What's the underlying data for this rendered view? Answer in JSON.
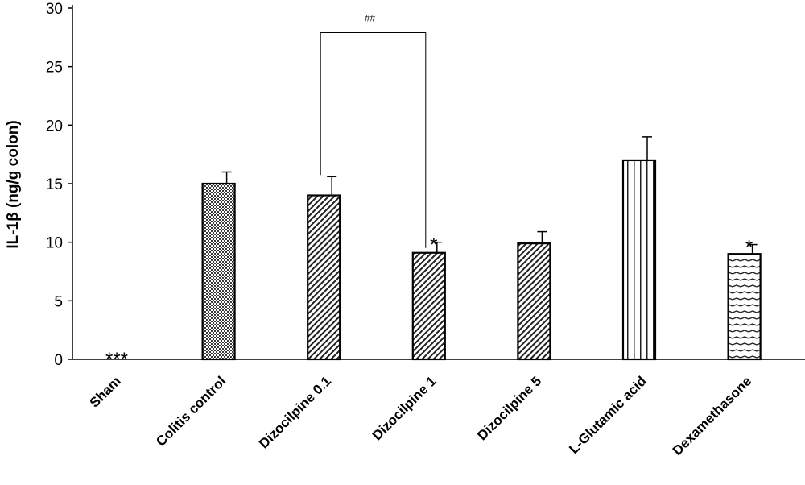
{
  "chart_data": {
    "type": "bar",
    "title": "",
    "xlabel": "",
    "ylabel": "IL-1β (ng/g colon)",
    "ylim": [
      0,
      30
    ],
    "yticks": [
      "0",
      "5",
      "10",
      "15",
      "20",
      "25",
      "30"
    ],
    "grid": false,
    "categories": [
      "Sham",
      "Colitis control",
      "Dizocilpine 0.1",
      "Dizocilpine 1",
      "Dizocilpine 5",
      "L-Glutamic acid",
      "Dexamethasone"
    ],
    "values": [
      0,
      15,
      14,
      9.1,
      9.9,
      17,
      9
    ],
    "errors": [
      0,
      1,
      1.6,
      0.9,
      1,
      2,
      0.8
    ],
    "patterns": [
      "none",
      "checker",
      "diagonal",
      "diagonal",
      "diagonal",
      "vertical",
      "wave"
    ],
    "significance": [
      "***",
      "",
      "",
      "*",
      "",
      "",
      "*"
    ],
    "comparison": {
      "from": "Dizocilpine 0.1",
      "to": "Dizocilpine 1",
      "label": "##",
      "y": 27.9
    }
  }
}
